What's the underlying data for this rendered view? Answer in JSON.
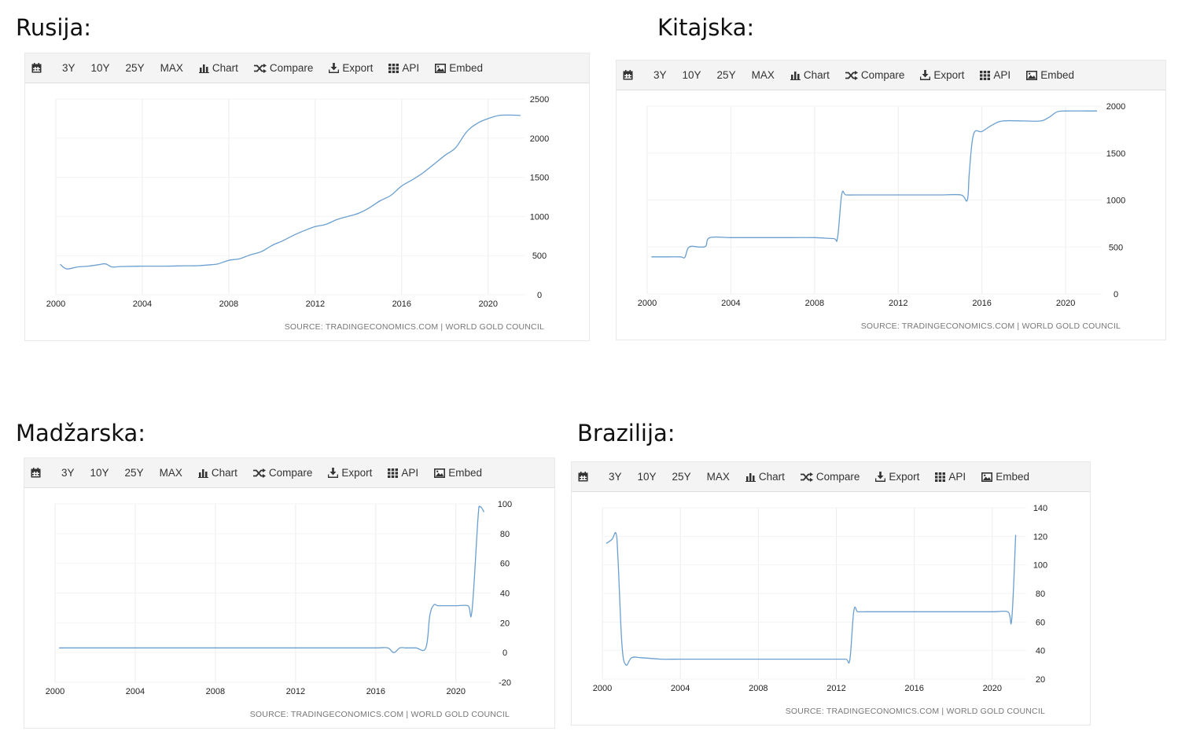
{
  "toolbar": {
    "items": [
      "3Y",
      "10Y",
      "25Y",
      "MAX",
      "Chart",
      "Compare",
      "Export",
      "API",
      "Embed"
    ]
  },
  "chart_data": [
    {
      "type": "line",
      "country": "Rusija:",
      "source": "SOURCE: TRADINGECONOMICS.COM | WORLD GOLD COUNCIL",
      "x_ticks": [
        2000,
        2004,
        2008,
        2012,
        2016,
        2020
      ],
      "y_ticks": [
        0,
        500,
        1000,
        1500,
        2000,
        2500
      ],
      "xlim": [
        2000,
        2021.5
      ],
      "ylim": [
        0,
        2500
      ],
      "grid": true,
      "y_axis_position": "right",
      "series": [
        {
          "x": [
            2000.2,
            2000.5,
            2001,
            2001.5,
            2002,
            2002.3,
            2002.6,
            2003,
            2004,
            2005,
            2006,
            2006.5,
            2007,
            2007.5,
            2008,
            2008.5,
            2009,
            2009.5,
            2010,
            2010.5,
            2011,
            2011.5,
            2012,
            2012.5,
            2013,
            2013.5,
            2014,
            2014.5,
            2015,
            2015.5,
            2016,
            2016.5,
            2017,
            2017.5,
            2018,
            2018.5,
            2019,
            2019.5,
            2020,
            2020.5,
            2021,
            2021.5
          ],
          "values": [
            390,
            330,
            355,
            365,
            385,
            395,
            355,
            360,
            365,
            365,
            370,
            370,
            380,
            395,
            440,
            460,
            510,
            550,
            630,
            690,
            760,
            820,
            870,
            900,
            960,
            1000,
            1040,
            1110,
            1200,
            1270,
            1390,
            1470,
            1560,
            1670,
            1780,
            1880,
            2080,
            2190,
            2250,
            2290,
            2295,
            2290
          ]
        }
      ]
    },
    {
      "type": "line",
      "country": "Kitajska:",
      "source": "SOURCE: TRADINGECONOMICS.COM | WORLD GOLD COUNCIL",
      "x_ticks": [
        2000,
        2004,
        2008,
        2012,
        2016,
        2020
      ],
      "y_ticks": [
        0,
        500,
        1000,
        1500,
        2000
      ],
      "xlim": [
        2000,
        2021.5
      ],
      "ylim": [
        0,
        2000
      ],
      "grid": true,
      "y_axis_position": "right",
      "series": [
        {
          "x": [
            2000.2,
            2001,
            2001.6,
            2001.8,
            2002,
            2002.5,
            2002.8,
            2003,
            2004,
            2005,
            2006,
            2007,
            2008,
            2008.9,
            2009.1,
            2009.3,
            2009.5,
            2010,
            2011,
            2012,
            2013,
            2014,
            2015,
            2015.3,
            2015.4,
            2015.6,
            2016,
            2016.5,
            2017,
            2018,
            2018.8,
            2019.2,
            2019.6,
            2020,
            2021,
            2021.5
          ],
          "values": [
            395,
            395,
            395,
            390,
            500,
            500,
            510,
            600,
            600,
            600,
            600,
            600,
            600,
            590,
            600,
            1060,
            1054,
            1054,
            1054,
            1054,
            1054,
            1054,
            1054,
            1000,
            1300,
            1700,
            1730,
            1800,
            1842,
            1842,
            1842,
            1880,
            1940,
            1948,
            1948,
            1948
          ]
        }
      ]
    },
    {
      "type": "line",
      "country": "Madžarska:",
      "source": "SOURCE: TRADINGECONOMICS.COM | WORLD GOLD COUNCIL",
      "x_ticks": [
        2000,
        2004,
        2008,
        2012,
        2016,
        2020
      ],
      "y_ticks": [
        -20,
        0,
        20,
        40,
        60,
        80,
        100
      ],
      "xlim": [
        2000,
        2021.5
      ],
      "ylim": [
        -20,
        100
      ],
      "grid": true,
      "y_axis_position": "right",
      "series": [
        {
          "x": [
            2000.2,
            2002,
            2004,
            2006,
            2008,
            2010,
            2012,
            2014,
            2016,
            2016.6,
            2016.9,
            2017.2,
            2017.5,
            2018,
            2018.5,
            2018.7,
            2018.9,
            2019.1,
            2019.5,
            2020,
            2020.6,
            2020.8,
            2021.1,
            2021.2,
            2021.4
          ],
          "values": [
            3.1,
            3.1,
            3.1,
            3.1,
            3.1,
            3.1,
            3.1,
            3.1,
            3.1,
            3.1,
            0,
            3.1,
            3.1,
            3.1,
            3.1,
            25,
            32,
            31.5,
            31.5,
            31.5,
            31.5,
            28,
            90,
            98,
            94.5
          ]
        }
      ]
    },
    {
      "type": "line",
      "country": "Brazilija:",
      "source": "SOURCE: TRADINGECONOMICS.COM | WORLD GOLD COUNCIL",
      "x_ticks": [
        2000,
        2004,
        2008,
        2012,
        2016,
        2020
      ],
      "y_ticks": [
        20,
        40,
        60,
        80,
        100,
        120,
        140
      ],
      "xlim": [
        2000,
        2021.5
      ],
      "ylim": [
        20,
        140
      ],
      "grid": true,
      "y_axis_position": "right",
      "series": [
        {
          "x": [
            2000.2,
            2000.5,
            2000.7,
            2000.8,
            2001,
            2001.2,
            2001.5,
            2002,
            2003,
            2004,
            2006,
            2008,
            2010,
            2012,
            2012.5,
            2012.7,
            2012.9,
            2013.1,
            2013.5,
            2014,
            2016,
            2018,
            2020,
            2020.8,
            2021,
            2021.2
          ],
          "values": [
            115,
            118,
            122,
            105,
            45,
            30,
            35,
            35,
            34,
            34,
            34,
            34,
            34,
            34,
            34,
            34,
            68,
            67.2,
            67.2,
            67.2,
            67.2,
            67.2,
            67.2,
            67.2,
            62,
            121
          ]
        }
      ]
    }
  ]
}
